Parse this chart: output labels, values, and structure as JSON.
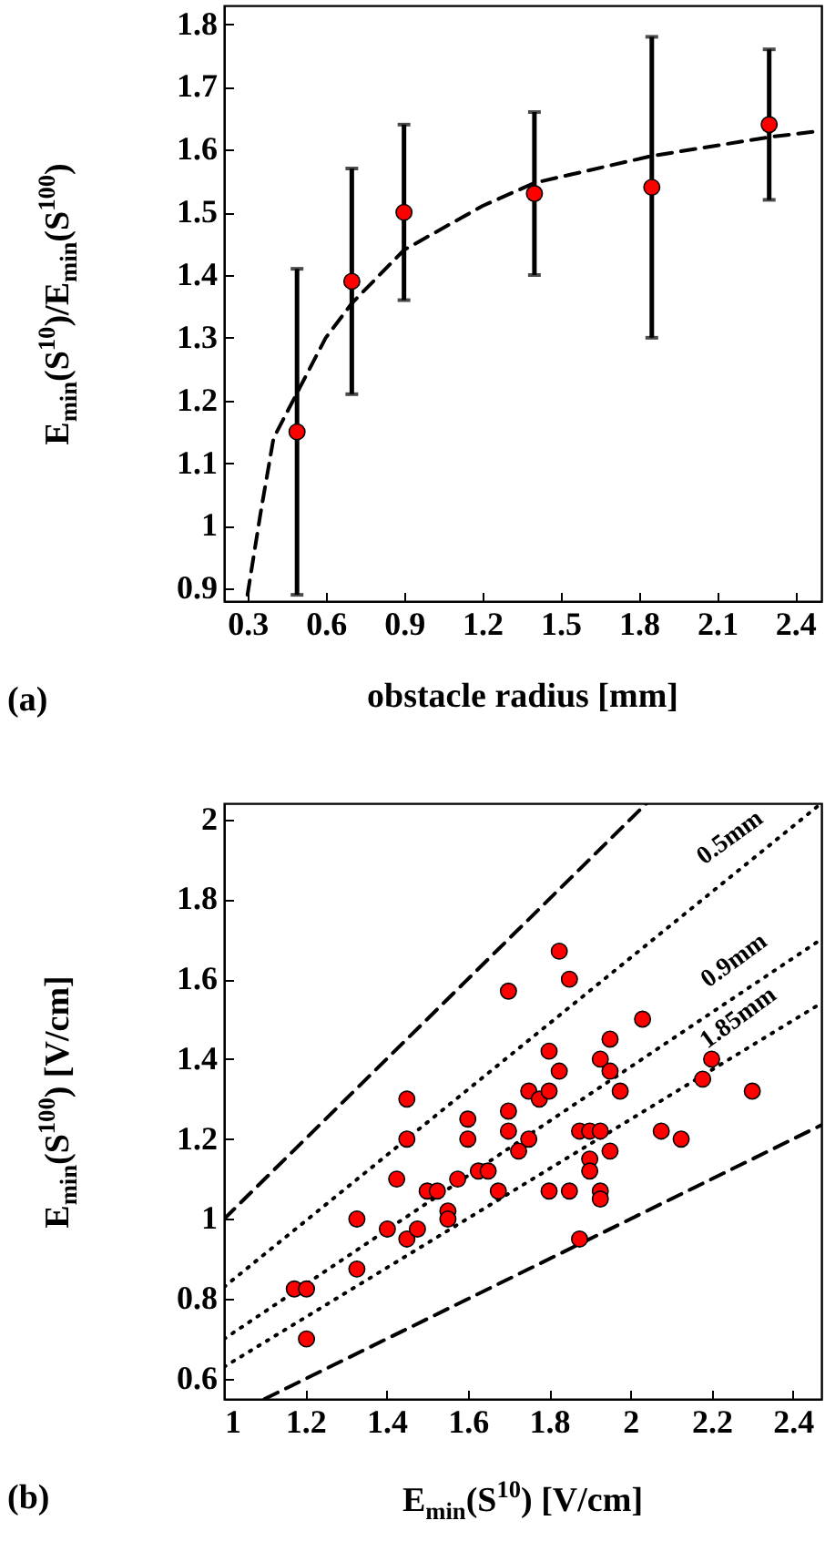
{
  "chart_data": [
    {
      "type": "scatter",
      "xlabel": "obstacle radius [mm]",
      "ylabel": "E$_{min}$(S$^{10}$)/E$_{min}$(S$^{100}$)",
      "annotations": [
        "(a)"
      ],
      "xlim": [
        0.21,
        2.5
      ],
      "ylim": [
        0.88,
        1.83
      ],
      "xticks": [
        0.3,
        0.6,
        0.9,
        1.2,
        1.5,
        1.8,
        2.1,
        2.4
      ],
      "yticks": [
        0.9,
        1,
        1.1,
        1.2,
        1.3,
        1.4,
        1.5,
        1.6,
        1.7,
        1.8
      ],
      "series": [
        {
          "marker": "circle",
          "color": "#ff0000",
          "x": [
            0.49,
            0.7,
            0.9,
            1.4,
            1.85,
            2.3
          ],
          "values": [
            1.15,
            1.39,
            1.5,
            1.53,
            1.54,
            1.64
          ],
          "errors": [
            [
              0.89,
              1.41
            ],
            [
              1.21,
              1.57
            ],
            [
              1.36,
              1.64
            ],
            [
              1.4,
              1.66
            ],
            [
              1.3,
              1.78
            ],
            [
              1.52,
              1.76
            ]
          ]
        },
        {
          "type": "line",
          "color": "#000000",
          "line_style": "dashed",
          "x": [
            0.3,
            0.35,
            0.4,
            0.5,
            0.6,
            0.7,
            0.9,
            1.2,
            1.4,
            1.85,
            2.3,
            2.5
          ],
          "values": [
            0.89,
            1.02,
            1.14,
            1.22,
            1.3,
            1.355,
            1.44,
            1.51,
            1.547,
            1.59,
            1.62,
            1.63
          ]
        }
      ]
    },
    {
      "type": "scatter",
      "xlabel": "E$_{min}$(S$^{10}$) [V/cm]",
      "ylabel": "E$_{min}$(S$^{100}$) [V/cm]",
      "annotations": [
        "(b)",
        {
          "text": "0.5mm",
          "x": 2.29,
          "y": 1.892
        },
        {
          "text": "0.9mm",
          "x": 2.3,
          "y": 1.584
        },
        {
          "text": "1.85mm",
          "x": 2.31,
          "y": 1.441
        }
      ],
      "xlim": [
        1,
        2.47
      ],
      "ylim": [
        0.55,
        2.04
      ],
      "xticks": [
        1,
        1.2,
        1.4,
        1.6,
        1.8,
        2,
        2.2,
        2.4
      ],
      "yticks": [
        0.6,
        0.8,
        1,
        1.2,
        1.4,
        1.6,
        1.8,
        2
      ],
      "series": [
        {
          "type": "line",
          "color": "#000000",
          "line_style": "dashed",
          "x": [
            1,
            2.04
          ],
          "values": [
            1,
            2.04
          ]
        },
        {
          "type": "line",
          "color": "#000000",
          "line_style": "dashed",
          "x": [
            1.1,
            2.47
          ],
          "values": [
            0.55,
            1.235
          ]
        },
        {
          "type": "line",
          "color": "#000000",
          "line_style": "dotted",
          "x": [
            1,
            2.47
          ],
          "values": [
            0.83,
            2.04
          ]
        },
        {
          "type": "line",
          "color": "#000000",
          "line_style": "dotted",
          "x": [
            1,
            2.47
          ],
          "values": [
            0.7,
            1.7
          ]
        },
        {
          "type": "line",
          "color": "#000000",
          "line_style": "dotted",
          "x": [
            1,
            2.47
          ],
          "values": [
            0.63,
            1.54
          ]
        },
        {
          "marker": "circle",
          "color": "#ff0000",
          "x": [
            1.173,
            1.203,
            1.203,
            1.327,
            1.327,
            1.402,
            1.425,
            1.45,
            1.45,
            1.45,
            1.476,
            1.5,
            1.525,
            1.551,
            1.551,
            1.575,
            1.6,
            1.6,
            1.626,
            1.65,
            1.675,
            1.7,
            1.7,
            1.7,
            1.725,
            1.75,
            1.75,
            1.776,
            1.8,
            1.8,
            1.825,
            1.8,
            1.825,
            1.85,
            1.85,
            1.875,
            1.875,
            1.9,
            1.9,
            1.9,
            1.926,
            1.926,
            1.926,
            1.926,
            1.95,
            1.95,
            1.95,
            1.975,
            2.03,
            2.076,
            2.125,
            2.178,
            2.2,
            2.3
          ],
          "values": [
            0.825,
            0.825,
            0.7,
            1.0,
            0.875,
            0.975,
            1.1,
            1.3,
            1.2,
            0.95,
            0.975,
            1.07,
            1.07,
            1.02,
            1.0,
            1.1,
            1.25,
            1.2,
            1.12,
            1.12,
            1.07,
            1.27,
            1.22,
            1.57,
            1.17,
            1.2,
            1.32,
            1.3,
            1.32,
            1.42,
            1.37,
            1.07,
            1.67,
            1.6,
            1.07,
            1.22,
            0.95,
            1.22,
            1.15,
            1.12,
            1.22,
            1.4,
            1.07,
            1.05,
            1.45,
            1.37,
            1.17,
            1.32,
            1.5,
            1.22,
            1.2,
            1.35,
            1.4,
            1.32
          ]
        }
      ]
    }
  ]
}
